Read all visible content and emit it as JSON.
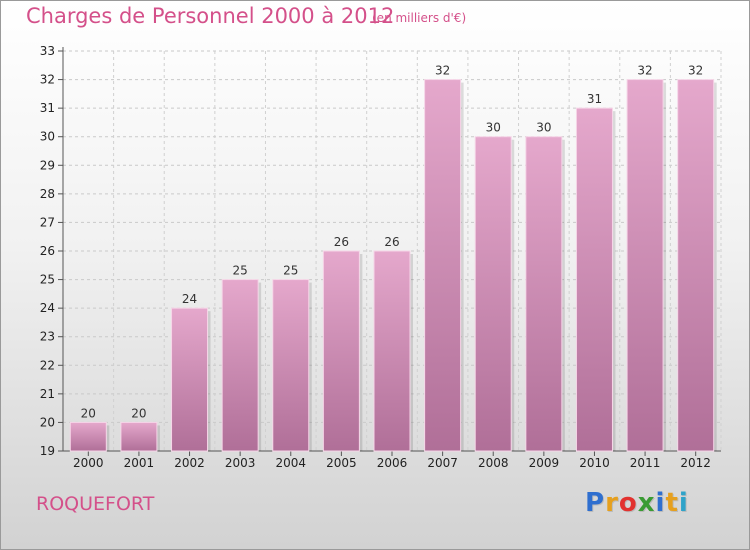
{
  "title": "Charges de Personnel 2000 à 2012",
  "subtitle": "(en milliers d'€)",
  "commune": "ROQUEFORT",
  "logo": {
    "letters": [
      "P",
      "r",
      "o",
      "x",
      "i",
      "t",
      "i"
    ],
    "colors": [
      "#2f6fcf",
      "#e6a01e",
      "#e2322f",
      "#3a9b33",
      "#2f6fcf",
      "#e6a01e",
      "#2fa3c9"
    ]
  },
  "colors": {
    "bar_top": "#e5a8cc",
    "bar_bottom": "#b06f98",
    "accent": "#d4508a"
  },
  "chart_data": {
    "type": "bar",
    "categories": [
      "2000",
      "2001",
      "2002",
      "2003",
      "2004",
      "2005",
      "2006",
      "2007",
      "2008",
      "2009",
      "2010",
      "2011",
      "2012"
    ],
    "values": [
      20,
      20,
      24,
      25,
      25,
      26,
      26,
      32,
      30,
      30,
      31,
      32,
      32
    ],
    "data_labels": [
      "20",
      "20",
      "24",
      "25",
      "25",
      "26",
      "26",
      "32",
      "30",
      "30",
      "31",
      "32",
      "32"
    ],
    "yticks": [
      "19",
      "20",
      "21",
      "22",
      "23",
      "24",
      "25",
      "26",
      "27",
      "28",
      "29",
      "30",
      "31",
      "32",
      "33"
    ],
    "ylim": [
      19,
      33
    ],
    "grid": true
  }
}
